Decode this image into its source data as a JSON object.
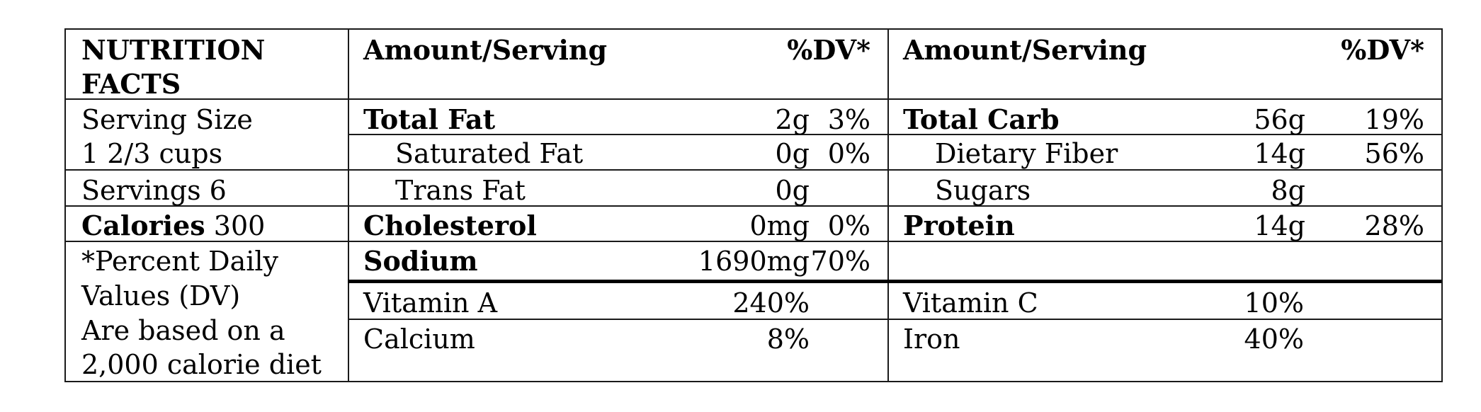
{
  "title": "NUTRITION FACTS",
  "title_line1": "NUTRITION",
  "title_line2": "FACTS",
  "left": {
    "serving_size_label": "Serving Size",
    "serving_size_value": "1 2/3 cups",
    "servings": "Servings 6",
    "calories_label": "Calories",
    "calories_value": "300",
    "footnote_lines": [
      "*Percent Daily",
      "Values (DV)",
      "Are based on a",
      "2,000 calorie diet"
    ]
  },
  "headers": {
    "amount": "Amount/Serving",
    "dv": "%DV*"
  },
  "col1": [
    {
      "name": "Total Fat",
      "amount": "2g",
      "dv": "3%",
      "bold": true
    },
    {
      "name": "Saturated Fat",
      "amount": "0g",
      "dv": "0%",
      "bold": false
    },
    {
      "name": "Trans Fat",
      "amount": "0g",
      "dv": "",
      "bold": false
    },
    {
      "name": "Cholesterol",
      "amount": "0mg",
      "dv": "0%",
      "bold": true
    },
    {
      "name": "Sodium",
      "amount": "1690mg",
      "dv": "70%",
      "bold": true
    }
  ],
  "col2": [
    {
      "name": "Total Carb",
      "amount": "56g",
      "dv": "19%",
      "bold": true
    },
    {
      "name": "Dietary Fiber",
      "amount": "14g",
      "dv": "56%",
      "bold": false
    },
    {
      "name": "Sugars",
      "amount": "8g",
      "dv": "",
      "bold": false
    },
    {
      "name": "Protein",
      "amount": "14g",
      "dv": "28%",
      "bold": true
    }
  ],
  "vitamins": {
    "vitamin_a": {
      "name": "Vitamin A",
      "value": "240%"
    },
    "calcium": {
      "name": "Calcium",
      "value": "8%"
    },
    "vitamin_c": {
      "name": "Vitamin C",
      "value": "10%"
    },
    "iron": {
      "name": "Iron",
      "value": "40%"
    }
  }
}
